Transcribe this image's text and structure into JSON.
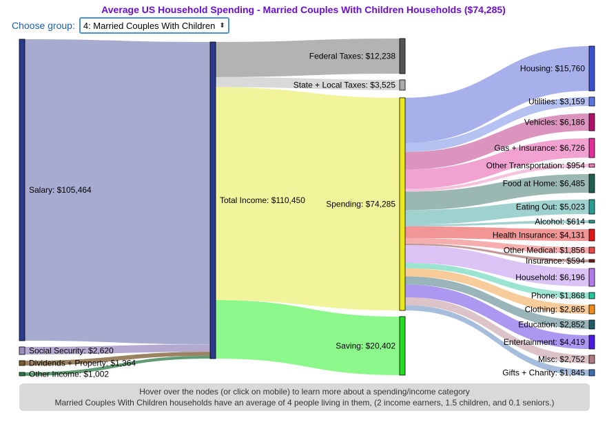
{
  "title": "Average US Household Spending - Married Couples With Children Households ($74,285)",
  "group_selector": {
    "label": "Choose group:",
    "selected": "4: Married Couples With Children"
  },
  "footer": {
    "line1": "Hover over the nodes (or click on mobile) to learn more about a spending/income category",
    "line2": "Married Couples With Children households have an average of 4 people living in them, (2 income earners, 1.5 children, and 0.1 seniors.)"
  },
  "colors": {
    "salary": "#2b3a8c",
    "social_security": "#9b8ebf",
    "dividends": "#7a5a2e",
    "other_income": "#2a7a45",
    "total_income": "#2b3a8c",
    "federal_taxes": "#555555",
    "state_taxes": "#aaaaaa",
    "spending": "#e8e81a",
    "saving": "#22dd22",
    "housing": "#3b4fd1",
    "utilities": "#5a76e0",
    "vehicles": "#b0126e",
    "gas_insurance": "#e0309a",
    "other_transport": "#e87ab6",
    "food_home": "#1f5f52",
    "eating_out": "#2a9c94",
    "alcohol": "#2a9c94",
    "health_insurance": "#e01515",
    "other_medical": "#e84a4a",
    "insurance": "#7a1a1a",
    "household": "#b27ae8",
    "phone": "#22c49a",
    "clothing": "#f08c1e",
    "education": "#1f5a66",
    "entertainment": "#4a1ae0",
    "misc": "#b07a82",
    "gifts": "#3a6fb0"
  },
  "chart_data": {
    "type": "sankey",
    "title": "Average US Household Spending - Married Couples With Children Households ($74,285)",
    "nodes": [
      {
        "id": "salary",
        "label": "Salary: $105,464",
        "value": 105464
      },
      {
        "id": "social_security",
        "label": "Social Security: $2,620",
        "value": 2620
      },
      {
        "id": "dividends",
        "label": "Dividends + Property: $1,364",
        "value": 1364
      },
      {
        "id": "other_income",
        "label": "Other Income: $1,002",
        "value": 1002
      },
      {
        "id": "total_income",
        "label": "Total Income: $110,450",
        "value": 110450
      },
      {
        "id": "federal_taxes",
        "label": "Federal Taxes: $12,238",
        "value": 12238
      },
      {
        "id": "state_taxes",
        "label": "State + Local Taxes: $3,525",
        "value": 3525
      },
      {
        "id": "spending",
        "label": "Spending: $74,285",
        "value": 74285
      },
      {
        "id": "saving",
        "label": "Saving: $20,402",
        "value": 20402
      },
      {
        "id": "housing",
        "label": "Housing: $15,760",
        "value": 15760
      },
      {
        "id": "utilities",
        "label": "Utilities: $3,159",
        "value": 3159
      },
      {
        "id": "vehicles",
        "label": "Vehicles: $6,186",
        "value": 6186
      },
      {
        "id": "gas_insurance",
        "label": "Gas + Insurance: $6,726",
        "value": 6726
      },
      {
        "id": "other_transport",
        "label": "Other Transportation: $954",
        "value": 954
      },
      {
        "id": "food_home",
        "label": "Food at Home: $6,485",
        "value": 6485
      },
      {
        "id": "eating_out",
        "label": "Eating Out: $5,023",
        "value": 5023
      },
      {
        "id": "alcohol",
        "label": "Alcohol: $614",
        "value": 614
      },
      {
        "id": "health_insurance",
        "label": "Health Insurance: $4,131",
        "value": 4131
      },
      {
        "id": "other_medical",
        "label": "Other Medical: $1,856",
        "value": 1856
      },
      {
        "id": "insurance",
        "label": "Insurance: $594",
        "value": 594
      },
      {
        "id": "household",
        "label": "Household: $6,196",
        "value": 6196
      },
      {
        "id": "phone",
        "label": "Phone: $1,868",
        "value": 1868
      },
      {
        "id": "clothing",
        "label": "Clothing: $2,865",
        "value": 2865
      },
      {
        "id": "education",
        "label": "Education: $2,852",
        "value": 2852
      },
      {
        "id": "entertainment",
        "label": "Entertainment: $4,419",
        "value": 4419
      },
      {
        "id": "misc",
        "label": "Misc: $2,752",
        "value": 2752
      },
      {
        "id": "gifts",
        "label": "Gifts + Charity: $1,845",
        "value": 1845
      }
    ],
    "links": [
      {
        "source": "salary",
        "target": "total_income",
        "value": 105464
      },
      {
        "source": "social_security",
        "target": "total_income",
        "value": 2620
      },
      {
        "source": "dividends",
        "target": "total_income",
        "value": 1364
      },
      {
        "source": "other_income",
        "target": "total_income",
        "value": 1002
      },
      {
        "source": "total_income",
        "target": "federal_taxes",
        "value": 12238
      },
      {
        "source": "total_income",
        "target": "state_taxes",
        "value": 3525
      },
      {
        "source": "total_income",
        "target": "spending",
        "value": 74285
      },
      {
        "source": "total_income",
        "target": "saving",
        "value": 20402
      },
      {
        "source": "spending",
        "target": "housing",
        "value": 15760
      },
      {
        "source": "spending",
        "target": "utilities",
        "value": 3159
      },
      {
        "source": "spending",
        "target": "vehicles",
        "value": 6186
      },
      {
        "source": "spending",
        "target": "gas_insurance",
        "value": 6726
      },
      {
        "source": "spending",
        "target": "other_transport",
        "value": 954
      },
      {
        "source": "spending",
        "target": "food_home",
        "value": 6485
      },
      {
        "source": "spending",
        "target": "eating_out",
        "value": 5023
      },
      {
        "source": "spending",
        "target": "alcohol",
        "value": 614
      },
      {
        "source": "spending",
        "target": "health_insurance",
        "value": 4131
      },
      {
        "source": "spending",
        "target": "other_medical",
        "value": 1856
      },
      {
        "source": "spending",
        "target": "insurance",
        "value": 594
      },
      {
        "source": "spending",
        "target": "household",
        "value": 6196
      },
      {
        "source": "spending",
        "target": "phone",
        "value": 1868
      },
      {
        "source": "spending",
        "target": "clothing",
        "value": 2865
      },
      {
        "source": "spending",
        "target": "education",
        "value": 2852
      },
      {
        "source": "spending",
        "target": "entertainment",
        "value": 4419
      },
      {
        "source": "spending",
        "target": "misc",
        "value": 2752
      },
      {
        "source": "spending",
        "target": "gifts",
        "value": 1845
      }
    ]
  }
}
